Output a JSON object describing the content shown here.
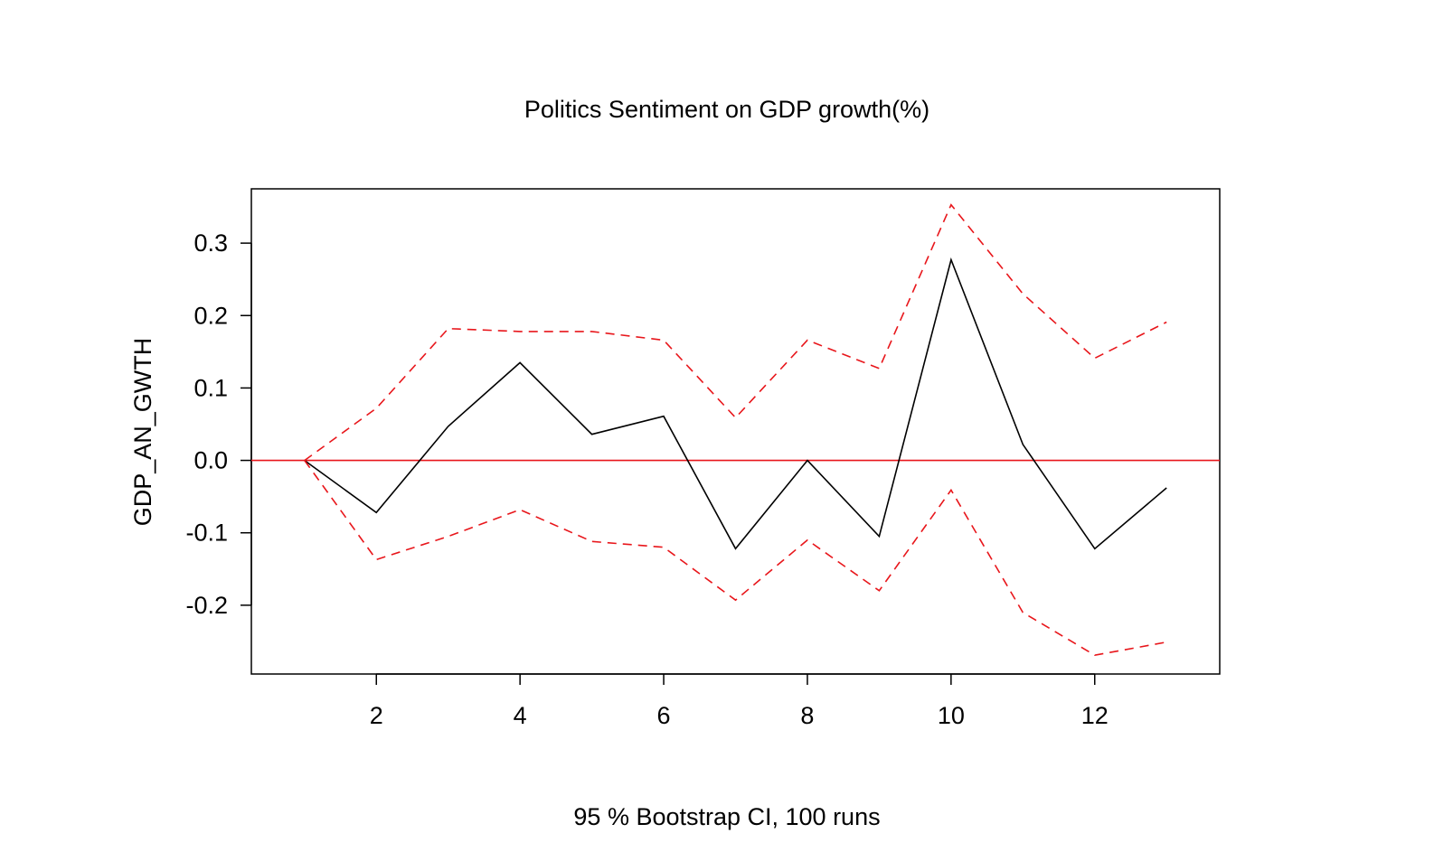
{
  "chart_data": {
    "type": "line",
    "title": "Politics Sentiment on GDP growth(%)",
    "xlabel": "95 % Bootstrap CI,  100 runs",
    "ylabel": "GDP_AN_GWTH",
    "x": [
      1,
      2,
      3,
      4,
      5,
      6,
      7,
      8,
      9,
      10,
      11,
      12,
      13
    ],
    "xlim": [
      0.26,
      13.74
    ],
    "ylim": [
      -0.295,
      0.375
    ],
    "x_ticks": [
      2,
      4,
      6,
      8,
      10,
      12
    ],
    "x_tick_labels": [
      "2",
      "4",
      "6",
      "8",
      "10",
      "12"
    ],
    "y_ticks": [
      -0.2,
      -0.1,
      0.0,
      0.1,
      0.2,
      0.3
    ],
    "y_tick_labels": [
      "-0.2",
      "-0.1",
      "0.0",
      "0.1",
      "0.2",
      "0.3"
    ],
    "grid": false,
    "series": [
      {
        "role": "estimate",
        "color": "#000000",
        "dash": "solid",
        "values": [
          0.0,
          -0.072,
          0.047,
          0.135,
          0.036,
          0.061,
          -0.122,
          0.0,
          -0.105,
          0.277,
          0.022,
          -0.122,
          -0.038
        ]
      },
      {
        "role": "upper-ci",
        "color": "#e8161b",
        "dash": "dashed",
        "values": [
          0.0,
          0.072,
          0.182,
          0.178,
          0.178,
          0.166,
          0.059,
          0.166,
          0.127,
          0.353,
          0.23,
          0.141,
          0.191
        ]
      },
      {
        "role": "lower-ci",
        "color": "#e8161b",
        "dash": "dashed",
        "values": [
          0.0,
          -0.137,
          -0.105,
          -0.068,
          -0.112,
          -0.12,
          -0.193,
          -0.11,
          -0.18,
          -0.041,
          -0.21,
          -0.269,
          -0.251
        ]
      }
    ],
    "reference_line": {
      "y": 0.0,
      "color": "#e8161b"
    }
  }
}
